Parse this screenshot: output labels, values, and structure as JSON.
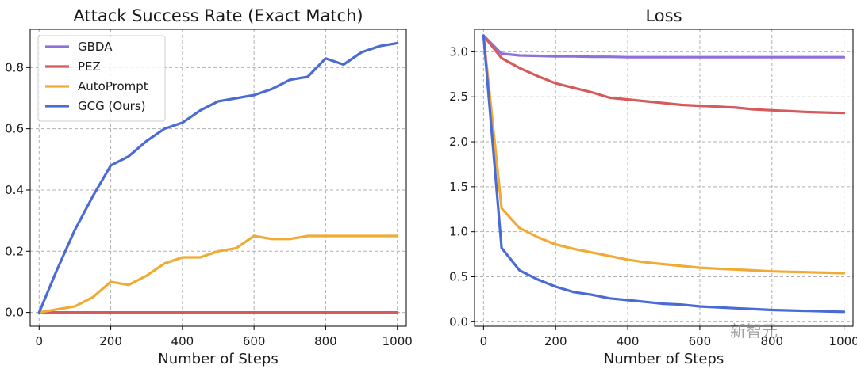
{
  "watermark": "新智元",
  "chart_data": [
    {
      "type": "line",
      "title": "Attack Success Rate (Exact Match)",
      "xlabel": "Number of Steps",
      "ylabel": "",
      "xlim": [
        -25,
        1025
      ],
      "ylim": [
        -0.045,
        0.925
      ],
      "xticks": [
        0,
        200,
        400,
        600,
        800,
        1000
      ],
      "yticks": [
        0.0,
        0.2,
        0.4,
        0.6,
        0.8
      ],
      "ytick_labels": [
        "0.0",
        "0.2",
        "0.4",
        "0.6",
        "0.8"
      ],
      "grid": true,
      "legend": "top-left",
      "x": [
        0,
        50,
        100,
        150,
        200,
        250,
        300,
        350,
        400,
        450,
        500,
        550,
        600,
        650,
        700,
        750,
        800,
        850,
        900,
        950,
        1000
      ],
      "series": [
        {
          "name": "GBDA",
          "color": "#8e6fdb",
          "values": [
            0,
            0,
            0,
            0,
            0,
            0,
            0,
            0,
            0,
            0,
            0,
            0,
            0,
            0,
            0,
            0,
            0,
            0,
            0,
            0,
            0
          ]
        },
        {
          "name": "PEZ",
          "color": "#d65a5a",
          "values": [
            0,
            0,
            0,
            0,
            0,
            0,
            0,
            0,
            0,
            0,
            0,
            0,
            0,
            0,
            0,
            0,
            0,
            0,
            0,
            0,
            0
          ]
        },
        {
          "name": "AutoPrompt",
          "color": "#f0ab35",
          "values": [
            0,
            0.01,
            0.02,
            0.05,
            0.1,
            0.09,
            0.12,
            0.16,
            0.18,
            0.18,
            0.2,
            0.21,
            0.25,
            0.24,
            0.24,
            0.25,
            0.25,
            0.25,
            0.25,
            0.25,
            0.25
          ]
        },
        {
          "name": "GCG (Ours)",
          "color": "#4a6bd6",
          "values": [
            0,
            0.14,
            0.27,
            0.38,
            0.48,
            0.51,
            0.56,
            0.6,
            0.62,
            0.66,
            0.69,
            0.7,
            0.71,
            0.73,
            0.76,
            0.77,
            0.83,
            0.81,
            0.85,
            0.87,
            0.88
          ]
        }
      ]
    },
    {
      "type": "line",
      "title": "Loss",
      "xlabel": "Number of Steps",
      "ylabel": "",
      "xlim": [
        -25,
        1025
      ],
      "ylim": [
        -0.05,
        3.25
      ],
      "xticks": [
        0,
        200,
        400,
        600,
        800,
        1000
      ],
      "yticks": [
        0.0,
        0.5,
        1.0,
        1.5,
        2.0,
        2.5,
        3.0
      ],
      "ytick_labels": [
        "0.0",
        "0.5",
        "1.0",
        "1.5",
        "2.0",
        "2.5",
        "3.0"
      ],
      "grid": true,
      "x": [
        0,
        50,
        100,
        150,
        200,
        250,
        300,
        350,
        400,
        450,
        500,
        550,
        600,
        650,
        700,
        750,
        800,
        850,
        900,
        950,
        1000
      ],
      "series": [
        {
          "name": "GBDA",
          "color": "#8e6fdb",
          "values": [
            3.18,
            2.98,
            2.96,
            2.955,
            2.95,
            2.95,
            2.945,
            2.945,
            2.94,
            2.94,
            2.94,
            2.94,
            2.94,
            2.94,
            2.94,
            2.94,
            2.94,
            2.94,
            2.94,
            2.94,
            2.94
          ]
        },
        {
          "name": "PEZ",
          "color": "#d65a5a",
          "values": [
            3.18,
            2.93,
            2.82,
            2.73,
            2.65,
            2.6,
            2.55,
            2.49,
            2.47,
            2.45,
            2.43,
            2.41,
            2.4,
            2.39,
            2.38,
            2.36,
            2.35,
            2.34,
            2.33,
            2.325,
            2.32
          ]
        },
        {
          "name": "AutoPrompt",
          "color": "#f0ab35",
          "values": [
            3.18,
            1.26,
            1.04,
            0.94,
            0.86,
            0.81,
            0.77,
            0.73,
            0.69,
            0.66,
            0.64,
            0.62,
            0.6,
            0.59,
            0.58,
            0.57,
            0.56,
            0.555,
            0.55,
            0.545,
            0.54
          ]
        },
        {
          "name": "GCG (Ours)",
          "color": "#4a6bd6",
          "values": [
            3.18,
            0.82,
            0.57,
            0.47,
            0.39,
            0.33,
            0.3,
            0.26,
            0.24,
            0.22,
            0.2,
            0.19,
            0.17,
            0.16,
            0.15,
            0.14,
            0.13,
            0.125,
            0.12,
            0.115,
            0.11
          ]
        }
      ]
    }
  ]
}
